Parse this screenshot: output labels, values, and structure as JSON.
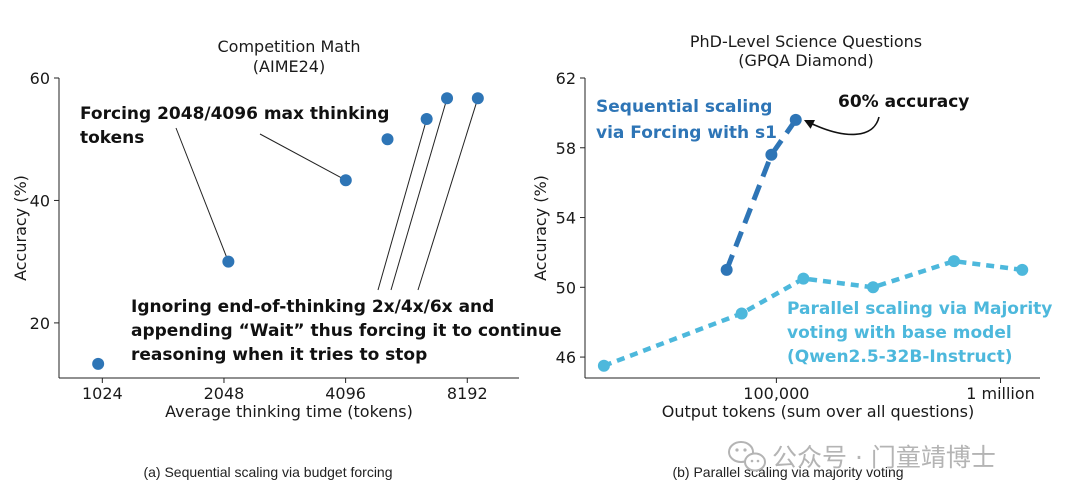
{
  "chart_data": [
    {
      "type": "scatter",
      "title": "Competition Math",
      "subtitle": "(AIME24)",
      "xlabel": "Average thinking time (tokens)",
      "ylabel": "Accuracy (%)",
      "x_scale": "log2",
      "xlim": [
        800,
        11000
      ],
      "ylim": [
        11,
        60
      ],
      "xticks": [
        1024,
        2048,
        4096,
        8192
      ],
      "xtick_labels": [
        "1024",
        "2048",
        "4096",
        "8192"
      ],
      "yticks": [
        20,
        40,
        60
      ],
      "ytick_labels": [
        "20",
        "40",
        "60"
      ],
      "grid": false,
      "color": "#2e75b6",
      "points": [
        {
          "x": 1000,
          "y": 13.3
        },
        {
          "x": 2100,
          "y": 30.0
        },
        {
          "x": 4100,
          "y": 43.3
        },
        {
          "x": 5200,
          "y": 50.0
        },
        {
          "x": 6500,
          "y": 53.3
        },
        {
          "x": 7300,
          "y": 56.7
        },
        {
          "x": 8700,
          "y": 56.7
        }
      ],
      "annotations": {
        "budget": {
          "lines": [
            "Forcing 2048/4096 max thinking",
            "tokens"
          ],
          "targets": [
            1,
            2
          ]
        },
        "wait": {
          "lines": [
            "Ignoring end-of-thinking 2x/4x/6x and",
            "appending “Wait” thus forcing it to continue",
            "reasoning when it tries to stop"
          ],
          "targets": [
            4,
            5,
            6
          ]
        }
      },
      "caption": "(a)  Sequential scaling via budget forcing"
    },
    {
      "type": "line",
      "title": "PhD-Level Science Questions",
      "subtitle": "(GPQA Diamond)",
      "xlabel": "Output tokens (sum over all questions)",
      "ylabel": "Accuracy (%)",
      "x_scale": "log10",
      "xlim": [
        14000,
        1500000
      ],
      "ylim": [
        44.8,
        62
      ],
      "xticks": [
        100000,
        1000000
      ],
      "xtick_labels": [
        "100,000",
        "1 million"
      ],
      "yticks": [
        46,
        50,
        54,
        58,
        62
      ],
      "ytick_labels": [
        "46",
        "50",
        "54",
        "58",
        "62"
      ],
      "grid": false,
      "series": [
        {
          "name": "Sequential scaling via Forcing with s1",
          "label_lines": [
            "Sequential scaling",
            "via Forcing with s1"
          ],
          "color": "#2e75b6",
          "style": "long-dash",
          "x": [
            60000,
            95000,
            122000
          ],
          "y": [
            51.0,
            57.6,
            59.6
          ]
        },
        {
          "name": "Parallel scaling via Majority voting with base model (Qwen2.5-32B-Instruct)",
          "label_lines": [
            "Parallel scaling via Majority",
            "voting with base model",
            "(Qwen2.5-32B-Instruct)"
          ],
          "color": "#4db8dc",
          "style": "short-dash",
          "x": [
            17000,
            70000,
            132000,
            270000,
            620000,
            1250000
          ],
          "y": [
            45.5,
            48.5,
            50.5,
            50.0,
            51.5,
            51.0
          ]
        }
      ],
      "annotations": {
        "peak": {
          "text": "60% accuracy",
          "target_series": 0,
          "target_index": 2
        }
      },
      "caption": "(b)  Parallel scaling via majority voting"
    }
  ],
  "watermark": {
    "text": "公众号 · 门童靖博士",
    "icon": "wechat-icon"
  }
}
